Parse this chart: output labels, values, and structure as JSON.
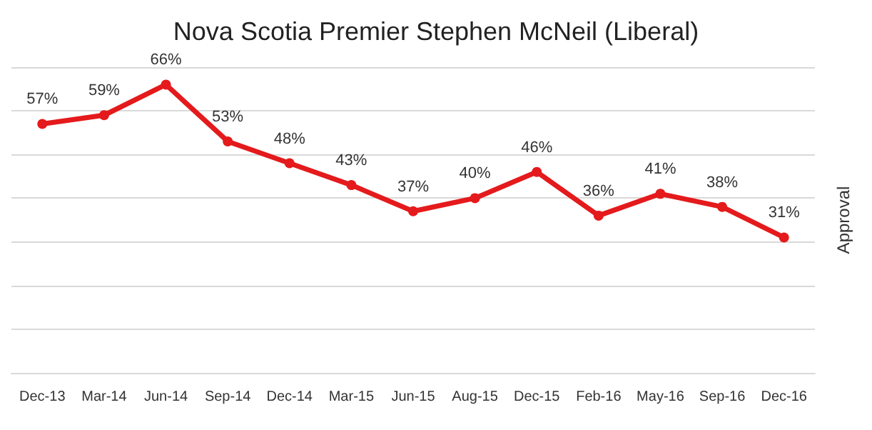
{
  "chart_data": {
    "type": "line",
    "title": "Nova Scotia Premier Stephen McNeil (Liberal)",
    "ylabel": "Approval",
    "categories": [
      "Dec-13",
      "Mar-14",
      "Jun-14",
      "Sep-14",
      "Dec-14",
      "Mar-15",
      "Jun-15",
      "Aug-15",
      "Dec-15",
      "Feb-16",
      "May-16",
      "Sep-16",
      "Dec-16"
    ],
    "series": [
      {
        "color": "#e41a1c",
        "values": [
          57,
          59,
          66,
          53,
          48,
          43,
          37,
          40,
          46,
          36,
          41,
          38,
          31
        ],
        "value_labels": [
          "57%",
          "59%",
          "66%",
          "53%",
          "48%",
          "43%",
          "37%",
          "40%",
          "46%",
          "36%",
          "41%",
          "38%",
          "31%"
        ]
      }
    ],
    "tick_labels": "x",
    "grid": "y",
    "marker": "circle",
    "line_style": "solid"
  }
}
